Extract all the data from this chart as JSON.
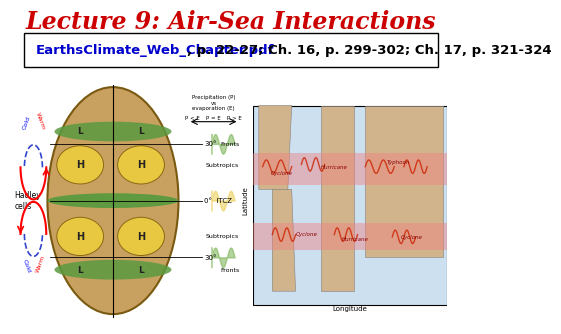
{
  "title": "Lecture 9: Air-Sea Interactions",
  "title_color": "#cc0000",
  "title_fontsize": 17,
  "subtitle_link_text": "EarthsClimate_Web_Chapter.pdf",
  "subtitle_rest": ", p. 22-27; Ch. 16, p. 299-302; Ch. 17, p. 321-324",
  "subtitle_fontsize": 9.5,
  "subtitle_link_color": "#0000cc",
  "subtitle_rest_color": "#000000",
  "background_color": "#ffffff"
}
